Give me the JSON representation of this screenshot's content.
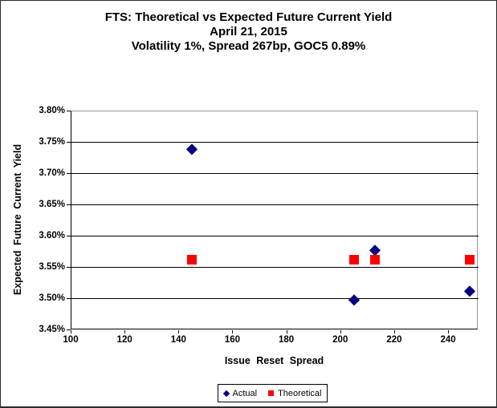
{
  "title": {
    "line1": "FTS: Theoretical vs Expected Future Current Yield",
    "line2": "April 21, 2015",
    "line3": "Volatility 1%, Spread 267bp, GOC5 0.89%"
  },
  "colors": {
    "actual": "#000080",
    "theoretical": "#ff0000",
    "gridline": "#000000",
    "plot_border": "#969696",
    "text": "#000000"
  },
  "chart_data": {
    "type": "scatter",
    "title": "FTS: Theoretical vs Expected Future Current Yield",
    "subtitle1": "April 21, 2015",
    "subtitle2": "Volatility 1%, Spread 267bp, GOC5 0.89%",
    "xlabel": "Issue Reset Spread",
    "ylabel": "Expected Future Current Yield",
    "xlim": [
      100,
      251
    ],
    "ylim": [
      3.45,
      3.8
    ],
    "grid": "horizontal",
    "legend_position": "bottom-center",
    "x_ticks": [
      {
        "v": 100,
        "label": "100"
      },
      {
        "v": 120,
        "label": "120"
      },
      {
        "v": 140,
        "label": "140"
      },
      {
        "v": 160,
        "label": "160"
      },
      {
        "v": 180,
        "label": "180"
      },
      {
        "v": 200,
        "label": "200"
      },
      {
        "v": 220,
        "label": "220"
      },
      {
        "v": 240,
        "label": "240"
      }
    ],
    "y_ticks": [
      {
        "v": 3.8,
        "label": "3.80%"
      },
      {
        "v": 3.75,
        "label": "3.75%"
      },
      {
        "v": 3.7,
        "label": "3.70%"
      },
      {
        "v": 3.65,
        "label": "3.65%"
      },
      {
        "v": 3.6,
        "label": "3.60%"
      },
      {
        "v": 3.55,
        "label": "3.55%"
      },
      {
        "v": 3.5,
        "label": "3.50%"
      },
      {
        "v": 3.45,
        "label": "3.45%"
      }
    ],
    "series": [
      {
        "name": "Actual",
        "marker": "diamond",
        "color": "#000080",
        "points": [
          {
            "x": 145,
            "y": 3.739
          },
          {
            "x": 205,
            "y": 3.497
          },
          {
            "x": 213,
            "y": 3.577
          },
          {
            "x": 248,
            "y": 3.511
          }
        ]
      },
      {
        "name": "Theoretical",
        "marker": "square",
        "color": "#ff0000",
        "points": [
          {
            "x": 145,
            "y": 3.562
          },
          {
            "x": 205,
            "y": 3.562
          },
          {
            "x": 213,
            "y": 3.562
          },
          {
            "x": 248,
            "y": 3.562
          }
        ]
      }
    ]
  }
}
